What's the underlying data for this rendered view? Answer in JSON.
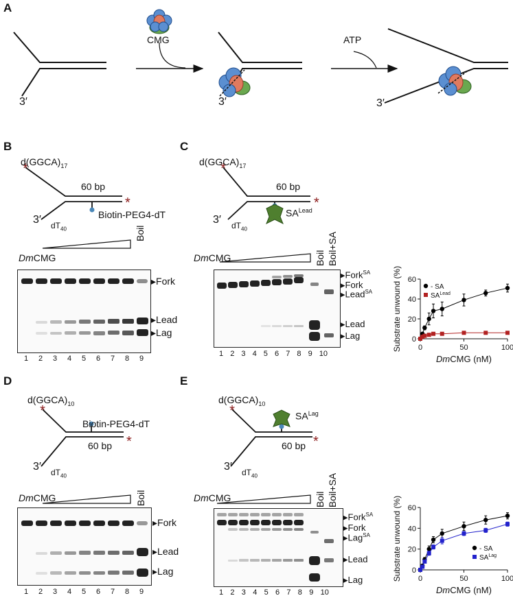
{
  "panels": {
    "a": "A",
    "b": "B",
    "c": "C",
    "d": "D",
    "e": "E"
  },
  "schemeA": {
    "cmg": "CMG",
    "atp": "ATP",
    "three_prime": "3′"
  },
  "b": {
    "top_strand": "d(GGCA)",
    "top_sub": "17",
    "bp": "60 bp",
    "biotin": "Biotin-PEG4-dT",
    "three_prime": "3′",
    "dt": "dT",
    "dt_sub": "40",
    "titr_dm": "Dm",
    "titr_cmg": "CMG",
    "boil": "Boil",
    "band_fork": "Fork",
    "band_lead": "Lead",
    "band_lag": "Lag",
    "lanes": [
      "1",
      "2",
      "3",
      "4",
      "5",
      "6",
      "7",
      "8",
      "9"
    ]
  },
  "c": {
    "top_strand": "d(GGCA)",
    "top_sub": "17",
    "bp": "60 bp",
    "sa": "SA",
    "sa_sup": "Lead",
    "three_prime": "3′",
    "dt": "dT",
    "dt_sub": "40",
    "titr_dm": "Dm",
    "titr_cmg": "CMG",
    "boil": "Boil",
    "boil_sa": "Boil+SA",
    "band_forksa": "Fork",
    "band_forksa_sup": "SA",
    "band_fork": "Fork",
    "band_leadsa": "Lead",
    "band_leadsa_sup": "SA",
    "band_lead": "Lead",
    "band_lag": "Lag",
    "lanes": [
      "1",
      "2",
      "3",
      "4",
      "5",
      "6",
      "7",
      "8",
      "9",
      "10"
    ]
  },
  "d": {
    "top_strand": "d(GGCA)",
    "top_sub": "10",
    "bp": "60 bp",
    "biotin": "Biotin-PEG4-dT",
    "three_prime": "3′",
    "dt": "dT",
    "dt_sub": "40",
    "titr_dm": "Dm",
    "titr_cmg": "CMG",
    "boil": "Boil",
    "band_fork": "Fork",
    "band_lead": "Lead",
    "band_lag": "Lag",
    "lanes": [
      "1",
      "2",
      "3",
      "4",
      "5",
      "6",
      "7",
      "8",
      "9"
    ]
  },
  "e": {
    "top_strand": "d(GGCA)",
    "top_sub": "10",
    "bp": "60 bp",
    "sa": "SA",
    "sa_sup": "Lag",
    "three_prime": "3′",
    "dt": "dT",
    "dt_sub": "40",
    "titr_dm": "Dm",
    "titr_cmg": "CMG",
    "boil": "Boil",
    "boil_sa": "Boil+SA",
    "band_forksa": "Fork",
    "band_forksa_sup": "SA",
    "band_fork": "Fork",
    "band_lagsa": "Lag",
    "band_lagsa_sup": "SA",
    "band_lead": "Lead",
    "band_lag": "Lag",
    "lanes": [
      "1",
      "2",
      "3",
      "4",
      "5",
      "6",
      "7",
      "8",
      "9",
      "10"
    ]
  },
  "chart_data": [
    {
      "type": "line",
      "xlabel": "DmCMG (nM)",
      "xlabel_italic": "Dm",
      "xlabel_rest": "CMG (nM)",
      "ylabel": "Substrate unwound (%)",
      "xlim": [
        0,
        100
      ],
      "ylim": [
        0,
        60
      ],
      "xticks": [
        0,
        50,
        100
      ],
      "yticks": [
        0,
        20,
        40,
        60
      ],
      "legend_placement": "top-left",
      "series": [
        {
          "name": "- SA",
          "name_sup": "",
          "color": "#000000",
          "marker": "circle",
          "x": [
            0,
            2.5,
            5,
            10,
            15,
            25,
            50,
            75,
            100
          ],
          "y": [
            0,
            5,
            11,
            20,
            28,
            30,
            39,
            46,
            51
          ],
          "err": [
            0,
            1,
            2,
            6,
            7,
            7,
            6,
            3,
            4
          ]
        },
        {
          "name": "SA",
          "name_sup": "Lead",
          "color": "#b22222",
          "marker": "square",
          "x": [
            0,
            2.5,
            5,
            10,
            15,
            25,
            50,
            75,
            100
          ],
          "y": [
            0,
            2,
            3,
            4,
            5,
            5,
            6,
            6,
            6
          ],
          "err": [
            0,
            0,
            0,
            0,
            0,
            0,
            0,
            0,
            0
          ]
        }
      ]
    },
    {
      "type": "line",
      "xlabel": "DmCMG (nM)",
      "xlabel_italic": "Dm",
      "xlabel_rest": "CMG (nM)",
      "ylabel": "Substrate unwound (%)",
      "xlim": [
        0,
        100
      ],
      "ylim": [
        0,
        60
      ],
      "xticks": [
        0,
        50,
        100
      ],
      "yticks": [
        0,
        20,
        40,
        60
      ],
      "legend_placement": "bottom-right",
      "series": [
        {
          "name": "- SA",
          "name_sup": "",
          "color": "#000000",
          "marker": "circle",
          "x": [
            0,
            2.5,
            5,
            10,
            15,
            25,
            50,
            75,
            100
          ],
          "y": [
            0,
            4,
            10,
            20,
            29,
            35,
            42,
            48,
            52
          ],
          "err": [
            0,
            1,
            2,
            3,
            3,
            4,
            4,
            4,
            3
          ]
        },
        {
          "name": "SA",
          "name_sup": "Lag",
          "color": "#2222cc",
          "marker": "square",
          "x": [
            0,
            2.5,
            5,
            10,
            15,
            25,
            50,
            75,
            100
          ],
          "y": [
            0,
            3,
            8,
            16,
            22,
            28,
            35,
            38,
            44
          ],
          "err": [
            0,
            1,
            1,
            2,
            2,
            3,
            2,
            2,
            2
          ]
        }
      ]
    }
  ]
}
